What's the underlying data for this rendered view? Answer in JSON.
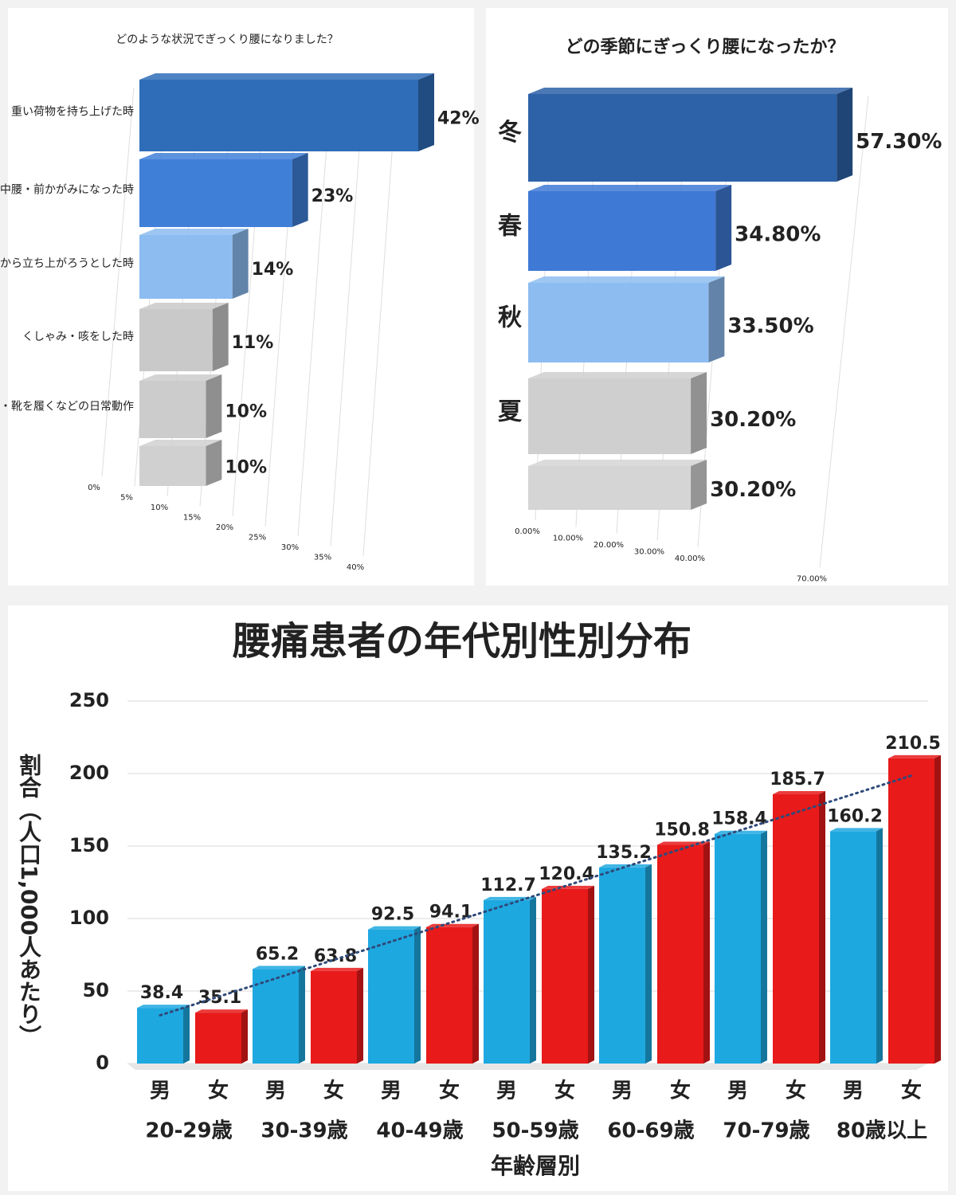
{
  "chart_data": [
    {
      "type": "bar",
      "orientation": "horizontal",
      "title": "どのような状況でぎっくり腰になりました？",
      "categories": [
        "重い荷物を持ち上げた時",
        "中腰・前かがみになった時",
        "椅子から立ち上がろうとした時",
        "くしゃみ・咳をした時",
        "洗濯・靴を履くなどの日常動作",
        null
      ],
      "values": [
        42,
        23,
        14,
        11,
        10,
        10
      ],
      "value_labels": [
        "42%",
        "23%",
        "14%",
        "11%",
        "10%",
        "10%"
      ],
      "colors": [
        "#2f6db8",
        "#3f7fd8",
        "#8cbcf0",
        "#c9c9c9",
        "#cccccc",
        "#d0d0d0"
      ],
      "xlim": [
        0,
        45
      ],
      "xticks": [
        {
          "value": 0,
          "label": "0%"
        },
        {
          "value": 5,
          "label": "5%"
        },
        {
          "value": 10,
          "label": "10%"
        },
        {
          "value": 15,
          "label": "15%"
        },
        {
          "value": 20,
          "label": "20%"
        },
        {
          "value": 25,
          "label": "25%"
        },
        {
          "value": 30,
          "label": "30%"
        },
        {
          "value": 35,
          "label": "35%"
        },
        {
          "value": 40,
          "label": "40%"
        }
      ],
      "grid": true
    },
    {
      "type": "bar",
      "orientation": "horizontal",
      "title": "どの季節にぎっくり腰になったか？",
      "categories": [
        "冬",
        "春",
        "秋",
        "夏",
        null
      ],
      "values": [
        57.3,
        34.8,
        33.5,
        30.2,
        30.2
      ],
      "value_labels": [
        "57.30%",
        "34.80%",
        "33.50%",
        "30.20%",
        "30.20%"
      ],
      "colors": [
        "#2d62a8",
        "#3f79d6",
        "#8dbdf0",
        "#cfcfcf",
        "#d5d5d5"
      ],
      "xlim": [
        0,
        70
      ],
      "xticks": [
        {
          "value": 0,
          "label": "0.00%"
        },
        {
          "value": 10,
          "label": "10.00%"
        },
        {
          "value": 20,
          "label": "20.00%"
        },
        {
          "value": 30,
          "label": "30.00%"
        },
        {
          "value": 40,
          "label": "40.00%"
        },
        {
          "value": 70,
          "label": "70.00%"
        }
      ],
      "grid": true
    },
    {
      "type": "grouped-bar",
      "title": "腰痛患者の年代別性別分布",
      "xlabel": "年齢層別",
      "ylabel": "割合（人口1,000人あたり）",
      "categories": [
        "20-29歳",
        "30-39歳",
        "40-49歳",
        "50-59歳",
        "60-69歳",
        "70-79歳",
        "80歳以上"
      ],
      "series": [
        {
          "name": "男",
          "color": "#1ea8e0",
          "values": [
            38.4,
            65.2,
            92.5,
            112.7,
            135.2,
            158.4,
            160.2
          ]
        },
        {
          "name": "女",
          "color": "#e81a1a",
          "values": [
            35.1,
            63.8,
            94.1,
            120.4,
            150.8,
            185.7,
            210.5
          ]
        }
      ],
      "ylim": [
        0,
        250
      ],
      "yticks": [
        0,
        50,
        100,
        150,
        200,
        250
      ],
      "grid": true,
      "trendline": true
    }
  ]
}
